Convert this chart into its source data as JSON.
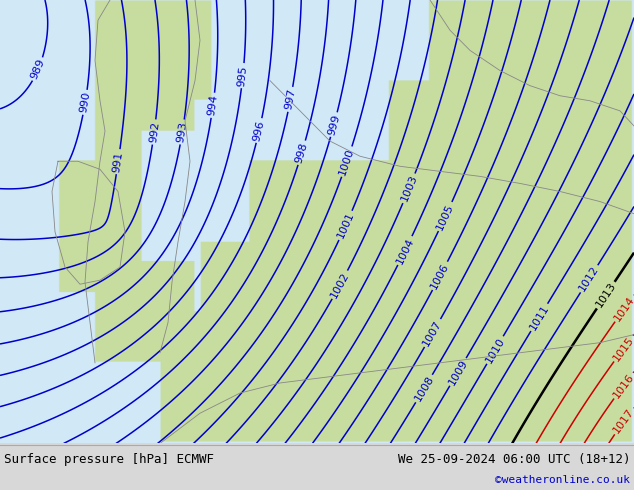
{
  "title_left": "Surface pressure [hPa] ECMWF",
  "title_right": "We 25-09-2024 06:00 UTC (18+12)",
  "credit": "©weatheronline.co.uk",
  "sea_color": "#d0e8f8",
  "land_color": "#c8dca0",
  "footer_bg": "#d8d8d8",
  "blue_contour_color": "#0000cc",
  "red_contour_color": "#cc0000",
  "black_contour_color": "#000000",
  "coast_color": "#888888",
  "label_fontsize": 8,
  "footer_fontsize": 9,
  "credit_fontsize": 8,
  "credit_color": "#0000cc",
  "figsize": [
    6.34,
    4.9
  ],
  "dpi": 100
}
